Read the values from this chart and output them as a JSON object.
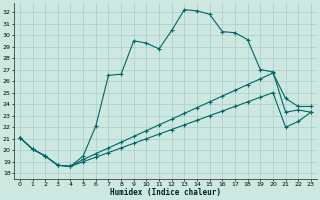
{
  "xlabel": "Humidex (Indice chaleur)",
  "bg_color": "#cce8e0",
  "grid_color": "#aacccc",
  "line_color": "#006666",
  "xlim": [
    -0.5,
    23.5
  ],
  "ylim": [
    17.5,
    32.8
  ],
  "yticks": [
    18,
    19,
    20,
    21,
    22,
    23,
    24,
    25,
    26,
    27,
    28,
    29,
    30,
    31,
    32
  ],
  "xticks": [
    0,
    1,
    2,
    3,
    4,
    5,
    6,
    7,
    8,
    9,
    10,
    11,
    12,
    13,
    14,
    15,
    16,
    17,
    18,
    19,
    20,
    21,
    22,
    23
  ],
  "line1_x": [
    0,
    1,
    2,
    3,
    4,
    5,
    6,
    7,
    8,
    9,
    10,
    11,
    12,
    13,
    14,
    15,
    16,
    17,
    18,
    19,
    20,
    21,
    22,
    23
  ],
  "line1_y": [
    21.1,
    20.1,
    19.5,
    18.7,
    18.6,
    19.5,
    22.1,
    26.5,
    26.6,
    29.5,
    29.3,
    28.8,
    30.4,
    32.2,
    32.1,
    31.8,
    30.3,
    30.2,
    29.6,
    27.0,
    26.8,
    23.3,
    23.5,
    23.3
  ],
  "line2_x": [
    0,
    1,
    2,
    3,
    4,
    5,
    6,
    7,
    8,
    9,
    10,
    11,
    12,
    13,
    14,
    15,
    16,
    17,
    18,
    19,
    20,
    21,
    22,
    23
  ],
  "line2_y": [
    21.1,
    20.1,
    19.5,
    18.7,
    18.6,
    19.2,
    19.7,
    20.2,
    20.7,
    21.2,
    21.7,
    22.2,
    22.7,
    23.2,
    23.7,
    24.2,
    24.7,
    25.2,
    25.7,
    26.2,
    26.7,
    24.5,
    23.8,
    23.8
  ],
  "line3_x": [
    0,
    1,
    2,
    3,
    4,
    5,
    6,
    7,
    8,
    9,
    10,
    11,
    12,
    13,
    14,
    15,
    16,
    17,
    18,
    19,
    20,
    21,
    22,
    23
  ],
  "line3_y": [
    21.1,
    20.1,
    19.5,
    18.7,
    18.6,
    19.0,
    19.4,
    19.8,
    20.2,
    20.6,
    21.0,
    21.4,
    21.8,
    22.2,
    22.6,
    23.0,
    23.4,
    23.8,
    24.2,
    24.6,
    25.0,
    22.0,
    22.5,
    23.3
  ]
}
